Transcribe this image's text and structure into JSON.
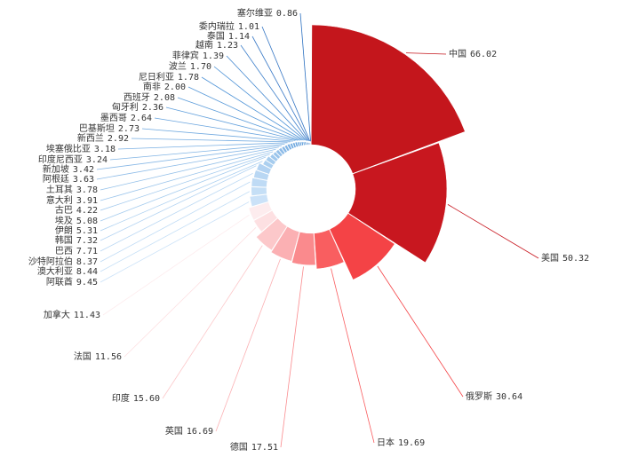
{
  "chart_data": {
    "type": "rose",
    "categories": [
      "中国",
      "美国",
      "俄罗斯",
      "日本",
      "德国",
      "英国",
      "印度",
      "法国",
      "加拿大",
      "阿联酋",
      "澳大利亚",
      "沙特阿拉伯",
      "巴西",
      "韩国",
      "伊朗",
      "埃及",
      "古巴",
      "意大利",
      "土耳其",
      "阿根廷",
      "新加坡",
      "印度尼西亚",
      "埃塞俄比亚",
      "新西兰",
      "巴基斯坦",
      "墨西哥",
      "匈牙利",
      "西班牙",
      "南非",
      "尼日利亚",
      "波兰",
      "菲律宾",
      "越南",
      "泰国",
      "委内瑞拉",
      "塞尔维亚"
    ],
    "values": [
      66.02,
      50.32,
      30.64,
      19.69,
      17.51,
      16.69,
      15.6,
      11.56,
      11.43,
      9.45,
      8.44,
      8.37,
      7.71,
      7.32,
      5.31,
      5.08,
      4.22,
      3.91,
      3.78,
      3.63,
      3.42,
      3.24,
      3.18,
      2.92,
      2.73,
      2.64,
      2.36,
      2.08,
      2.0,
      1.78,
      1.7,
      1.39,
      1.23,
      1.14,
      1.01,
      0.86
    ],
    "value_labels": [
      "66.02",
      "50.32",
      "30.64",
      "19.69",
      "17.51",
      "16.69",
      "15.60",
      "11.56",
      "11.43",
      "9.45",
      "8.44",
      "8.37",
      "7.71",
      "7.32",
      "5.31",
      "5.08",
      "4.22",
      "3.91",
      "3.78",
      "3.63",
      "3.42",
      "3.24",
      "3.18",
      "2.92",
      "2.73",
      "2.64",
      "2.36",
      "2.08",
      "2.00",
      "1.78",
      "1.70",
      "1.39",
      "1.23",
      "1.14",
      "1.01",
      "0.86"
    ],
    "colors": [
      "#c4161c",
      "#c8171f",
      "#f44346",
      "#f95e60",
      "#fa8a8d",
      "#fbb0b3",
      "#fcc8ca",
      "#fde0e2",
      "#fdecee",
      "#cbe2f8",
      "#c5dff6",
      "#bfdbf5",
      "#b9d7f3",
      "#b3d3f2",
      "#acd0f0",
      "#a6ccee",
      "#a0c8ed",
      "#9ac4eb",
      "#94c0e9",
      "#8ebce8",
      "#88b8e6",
      "#81b4e4",
      "#7bb0e3",
      "#75ace1",
      "#6fa8df",
      "#69a4de",
      "#63a0dc",
      "#5c9cda",
      "#5698d8",
      "#5094d7",
      "#4a90d5",
      "#4488d0",
      "#3e80cb",
      "#3878c6",
      "#3274c3",
      "#2a6fc0"
    ]
  }
}
